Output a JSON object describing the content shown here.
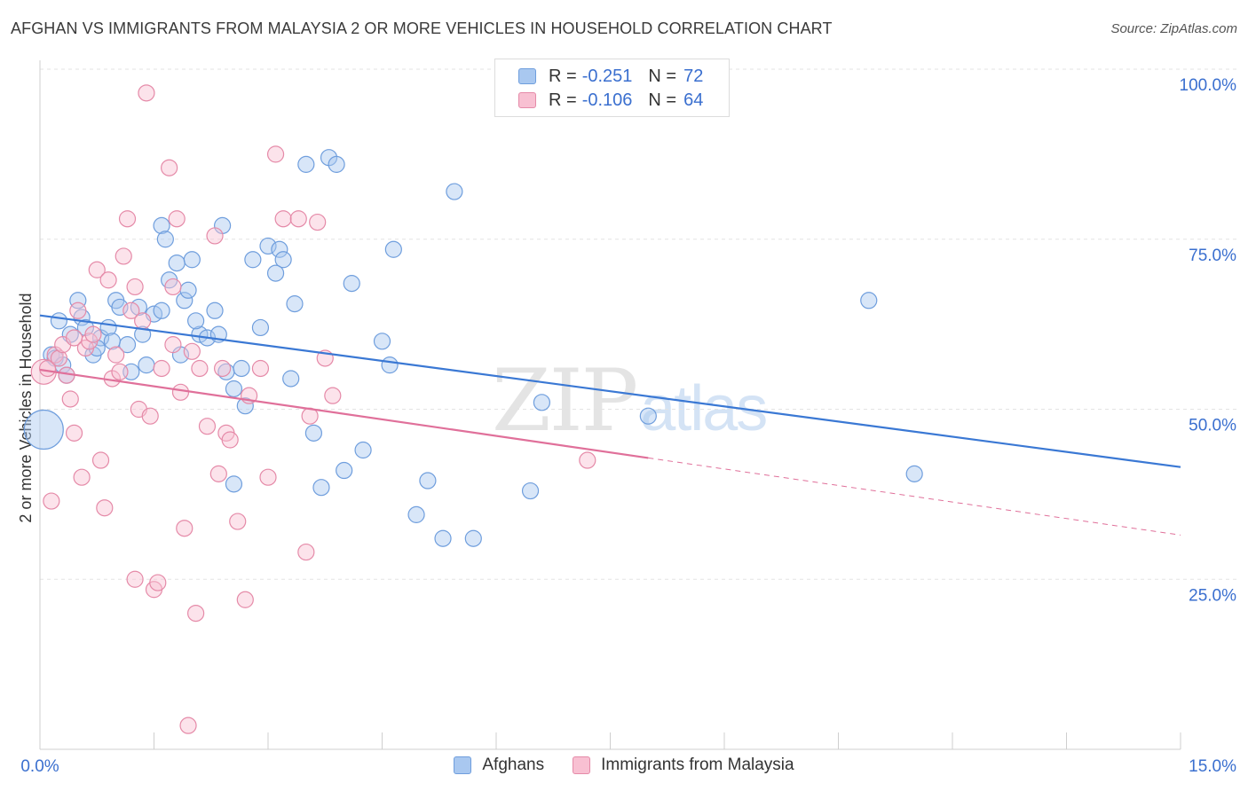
{
  "title": "AFGHAN VS IMMIGRANTS FROM MALAYSIA 2 OR MORE VEHICLES IN HOUSEHOLD CORRELATION CHART",
  "source": "Source: ZipAtlas.com",
  "watermark": {
    "zip": "ZIP",
    "atlas": "atlas"
  },
  "legend": {
    "rows": [
      {
        "r_label": "R =",
        "r_value": "-0.251",
        "n_label": "N =",
        "n_value": "72",
        "color": "#a9c8f0",
        "border": "#6f9edd"
      },
      {
        "r_label": "R =",
        "r_value": "-0.106",
        "n_label": "N =",
        "n_value": "64",
        "color": "#f8c0d2",
        "border": "#e58aa8"
      }
    ]
  },
  "bottom_legend": [
    {
      "label": "Afghans",
      "color": "#a9c8f0",
      "border": "#6f9edd"
    },
    {
      "label": "Immigrants from Malaysia",
      "color": "#f8c0d2",
      "border": "#e58aa8"
    }
  ],
  "chart_data": {
    "type": "scatter",
    "title": "AFGHAN VS IMMIGRANTS FROM MALAYSIA 2 OR MORE VEHICLES IN HOUSEHOLD CORRELATION CHART",
    "xlabel": "",
    "ylabel": "2 or more Vehicles in Household",
    "xlim": [
      0,
      15
    ],
    "ylim": [
      0,
      100
    ],
    "x_tick_labels": [
      "0.0%",
      "15.0%"
    ],
    "y_ticks": [
      25,
      50,
      75,
      100
    ],
    "y_tick_labels": [
      "25.0%",
      "50.0%",
      "75.0%",
      "100.0%"
    ],
    "grid": true,
    "legend_position": "top-center",
    "colors": {
      "afghans": "#3a78d4",
      "malaysia": "#e0709a"
    },
    "series": [
      {
        "name": "Afghans",
        "points": [
          [
            0.05,
            47.0
          ],
          [
            0.15,
            58.0
          ],
          [
            0.2,
            57.5
          ],
          [
            0.25,
            63.0
          ],
          [
            0.3,
            56.5
          ],
          [
            0.4,
            61.0
          ],
          [
            0.5,
            66.0
          ],
          [
            0.55,
            63.5
          ],
          [
            0.6,
            62.0
          ],
          [
            0.7,
            58.0
          ],
          [
            0.8,
            60.5
          ],
          [
            0.9,
            62.0
          ],
          [
            1.0,
            66.0
          ],
          [
            1.05,
            65.0
          ],
          [
            1.15,
            59.5
          ],
          [
            1.2,
            55.5
          ],
          [
            1.35,
            61.0
          ],
          [
            1.4,
            56.5
          ],
          [
            1.5,
            64.0
          ],
          [
            1.6,
            77.0
          ],
          [
            1.65,
            75.0
          ],
          [
            1.7,
            69.0
          ],
          [
            1.8,
            71.5
          ],
          [
            1.9,
            66.0
          ],
          [
            1.95,
            67.5
          ],
          [
            2.0,
            72.0
          ],
          [
            2.1,
            61.0
          ],
          [
            2.2,
            60.5
          ],
          [
            2.3,
            64.5
          ],
          [
            2.35,
            61.0
          ],
          [
            2.4,
            77.0
          ],
          [
            2.45,
            55.5
          ],
          [
            2.55,
            53.0
          ],
          [
            2.7,
            50.5
          ],
          [
            2.8,
            72.0
          ],
          [
            2.9,
            62.0
          ],
          [
            2.55,
            39.0
          ],
          [
            3.0,
            74.0
          ],
          [
            3.15,
            73.5
          ],
          [
            3.2,
            72.0
          ],
          [
            3.3,
            54.5
          ],
          [
            3.35,
            65.5
          ],
          [
            3.5,
            86.0
          ],
          [
            3.6,
            46.5
          ],
          [
            3.7,
            38.5
          ],
          [
            3.8,
            87.0
          ],
          [
            3.9,
            86.0
          ],
          [
            4.0,
            41.0
          ],
          [
            4.1,
            68.5
          ],
          [
            4.25,
            44.0
          ],
          [
            4.5,
            60.0
          ],
          [
            4.6,
            56.5
          ],
          [
            4.65,
            73.5
          ],
          [
            4.95,
            34.5
          ],
          [
            5.1,
            39.5
          ],
          [
            5.3,
            31.0
          ],
          [
            5.45,
            82.0
          ],
          [
            5.7,
            31.0
          ],
          [
            6.45,
            38.0
          ],
          [
            6.6,
            51.0
          ],
          [
            8.0,
            49.0
          ],
          [
            10.9,
            66.0
          ],
          [
            11.5,
            40.5
          ],
          [
            2.65,
            56.0
          ],
          [
            3.1,
            70.0
          ],
          [
            1.6,
            64.5
          ],
          [
            0.95,
            60.0
          ],
          [
            1.3,
            65.0
          ],
          [
            2.05,
            63.0
          ],
          [
            0.35,
            55.0
          ],
          [
            0.75,
            59.0
          ],
          [
            1.85,
            58.0
          ]
        ]
      },
      {
        "name": "Immigrants from Malaysia",
        "points": [
          [
            0.05,
            55.5
          ],
          [
            0.1,
            56.0
          ],
          [
            0.15,
            36.5
          ],
          [
            0.2,
            58.0
          ],
          [
            0.25,
            57.5
          ],
          [
            0.3,
            59.5
          ],
          [
            0.35,
            55.0
          ],
          [
            0.4,
            51.5
          ],
          [
            0.45,
            46.5
          ],
          [
            0.5,
            64.5
          ],
          [
            0.55,
            40.0
          ],
          [
            0.6,
            59.0
          ],
          [
            0.65,
            60.0
          ],
          [
            0.7,
            61.0
          ],
          [
            0.75,
            70.5
          ],
          [
            0.8,
            42.5
          ],
          [
            0.85,
            35.5
          ],
          [
            0.9,
            69.0
          ],
          [
            0.95,
            54.5
          ],
          [
            1.0,
            58.0
          ],
          [
            1.05,
            55.5
          ],
          [
            1.1,
            72.5
          ],
          [
            1.15,
            78.0
          ],
          [
            1.2,
            64.5
          ],
          [
            1.25,
            68.0
          ],
          [
            1.3,
            50.0
          ],
          [
            1.35,
            63.0
          ],
          [
            1.4,
            96.5
          ],
          [
            1.45,
            49.0
          ],
          [
            1.5,
            23.5
          ],
          [
            1.55,
            24.5
          ],
          [
            1.6,
            56.0
          ],
          [
            1.7,
            85.5
          ],
          [
            1.75,
            68.0
          ],
          [
            1.8,
            78.0
          ],
          [
            1.85,
            52.5
          ],
          [
            1.9,
            32.5
          ],
          [
            1.95,
            3.5
          ],
          [
            2.0,
            58.5
          ],
          [
            2.05,
            20.0
          ],
          [
            2.1,
            56.0
          ],
          [
            2.2,
            47.5
          ],
          [
            2.3,
            75.5
          ],
          [
            2.35,
            40.5
          ],
          [
            2.4,
            56.0
          ],
          [
            2.45,
            46.5
          ],
          [
            2.5,
            45.5
          ],
          [
            2.6,
            33.5
          ],
          [
            2.7,
            22.0
          ],
          [
            2.75,
            52.0
          ],
          [
            2.9,
            56.0
          ],
          [
            3.0,
            40.0
          ],
          [
            3.1,
            87.5
          ],
          [
            3.2,
            78.0
          ],
          [
            3.4,
            78.0
          ],
          [
            3.5,
            29.0
          ],
          [
            3.55,
            49.0
          ],
          [
            3.65,
            77.5
          ],
          [
            3.75,
            57.5
          ],
          [
            1.25,
            25.0
          ],
          [
            0.45,
            60.5
          ],
          [
            1.75,
            59.5
          ],
          [
            7.2,
            42.5
          ],
          [
            3.85,
            52.0
          ]
        ]
      }
    ],
    "trend_lines": [
      {
        "series": "Afghans",
        "x0": 0,
        "y0": 63.8,
        "x1": 15,
        "y1": 41.5,
        "dashed_from": null
      },
      {
        "series": "Immigrants from Malaysia",
        "x0": 0,
        "y0": 55.8,
        "x1": 15,
        "y1": 31.5,
        "dashed_from": 8.0
      }
    ]
  }
}
